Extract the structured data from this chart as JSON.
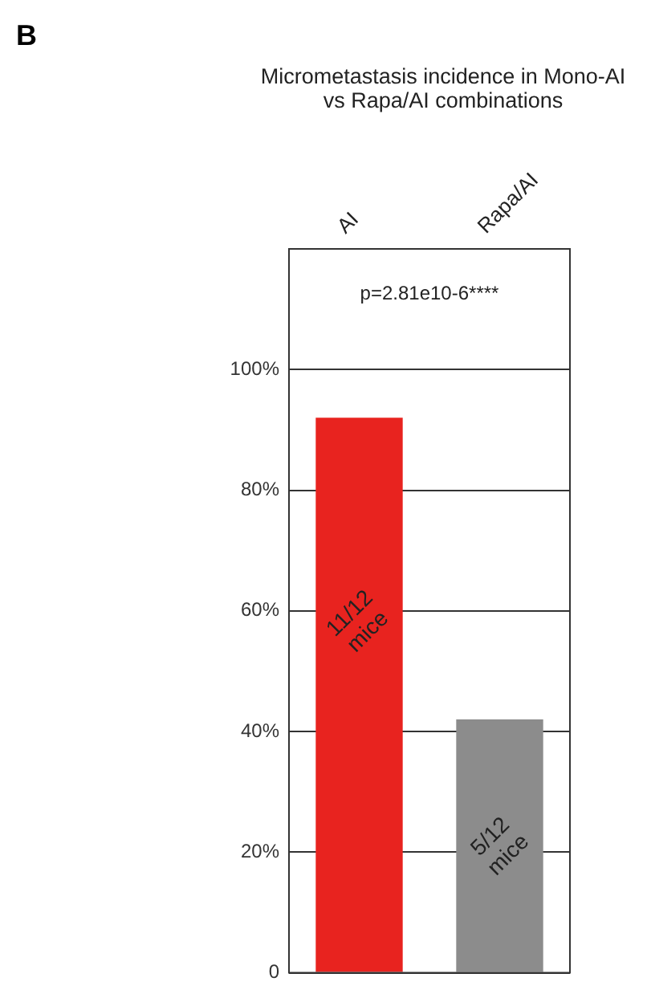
{
  "chart_data": {
    "type": "bar",
    "title": "Micrometastasis incidence in Mono-AI vs Rapa/AI combinations",
    "categories": [
      "AI",
      "Rapa/AI"
    ],
    "values": [
      92,
      42
    ],
    "colors": [
      "#e8231f",
      "#8c8c8c"
    ],
    "value_labels": [
      "11/12 mice",
      "5/12 mice"
    ],
    "ylim": [
      0,
      120
    ],
    "yticks": [
      {
        "value": 0,
        "label": "0"
      },
      {
        "value": 20,
        "label": "20%"
      },
      {
        "value": 40,
        "label": "40%"
      },
      {
        "value": 60,
        "label": "60%"
      },
      {
        "value": 80,
        "label": "80%"
      },
      {
        "value": 100,
        "label": "100%"
      }
    ],
    "grid": "y",
    "annotations": [
      "B",
      "p=2.81e10-6****"
    ]
  }
}
